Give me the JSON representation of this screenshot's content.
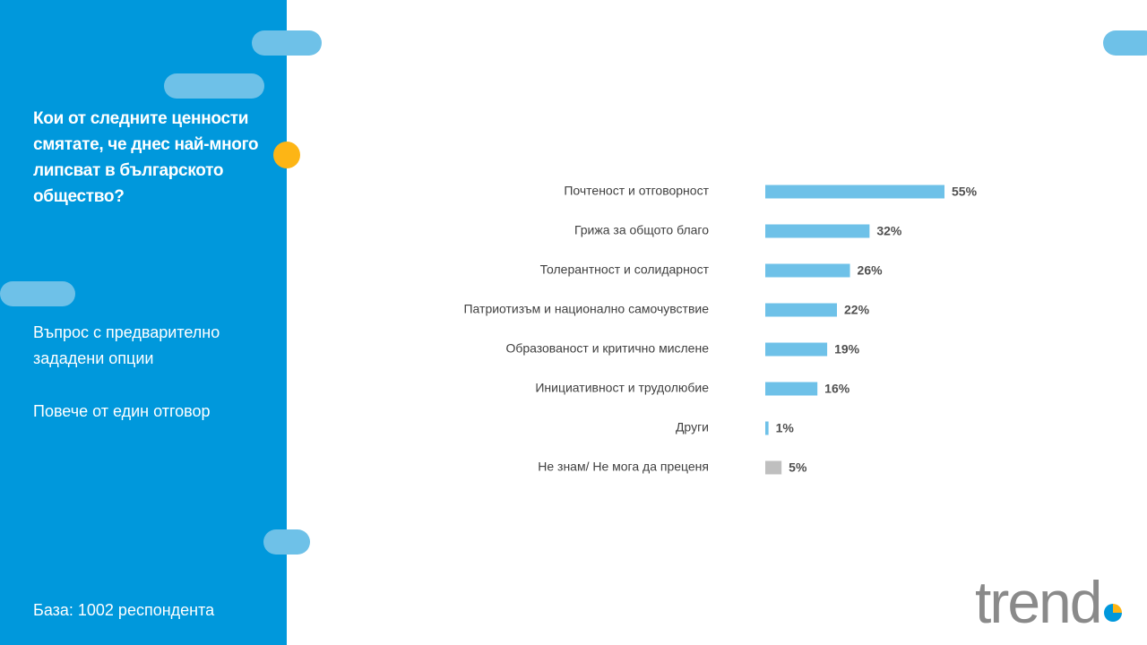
{
  "panel": {
    "title": "Кои от следните ценности смятате, че днес най-много липсват в българското общество?",
    "notes": [
      "Въпрос с предварително зададени опции",
      "Повече от един отговор"
    ],
    "base": "База:  1002 респондента"
  },
  "logo": "trend",
  "chart_data": {
    "type": "hbar",
    "categories": [
      "Почтеност и отговорност",
      "Грижа за общото благо",
      "Толерантност и солидарност",
      "Патриотизъм и национално самочувствие",
      "Образованост и критично мислене",
      "Инициативност и трудолюбие",
      "Други",
      "Не знам/ Не мога да преценя"
    ],
    "values": [
      55,
      32,
      26,
      22,
      19,
      16,
      1,
      5
    ],
    "value_labels": [
      "55%",
      "32%",
      "26%",
      "22%",
      "19%",
      "16%",
      "1%",
      "5%"
    ],
    "colors": [
      "#6ec1e8",
      "#6ec1e8",
      "#6ec1e8",
      "#6ec1e8",
      "#6ec1e8",
      "#6ec1e8",
      "#6ec1e8",
      "#bfbfbf"
    ]
  }
}
